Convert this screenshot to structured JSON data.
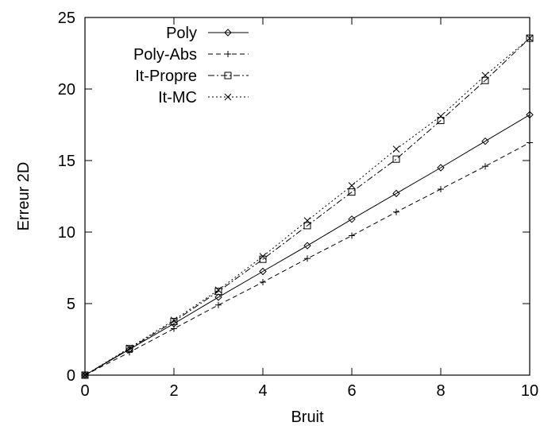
{
  "chart_data": {
    "type": "line",
    "title": "",
    "xlabel": "Bruit",
    "ylabel": "Erreur 2D",
    "xlim": [
      0,
      10
    ],
    "ylim": [
      0,
      25
    ],
    "xticks": [
      "0",
      "2",
      "4",
      "6",
      "8",
      "10"
    ],
    "yticks": [
      "0",
      "5",
      "10",
      "15",
      "20",
      "25"
    ],
    "grid": false,
    "legend_position": "top-left",
    "x": [
      0,
      1,
      2,
      3,
      4,
      5,
      6,
      7,
      8,
      9,
      10
    ],
    "series": [
      {
        "name": "Poly",
        "marker": "diamond",
        "dash": "solid",
        "values": [
          0,
          1.8,
          3.6,
          5.45,
          7.25,
          9.05,
          10.9,
          12.7,
          14.5,
          16.35,
          18.2
        ]
      },
      {
        "name": "Poly-Abs",
        "marker": "plus",
        "dash": "dashed",
        "values": [
          0,
          1.6,
          3.25,
          4.9,
          6.5,
          8.15,
          9.75,
          11.4,
          13.0,
          14.6,
          16.25
        ]
      },
      {
        "name": "It-Propre",
        "marker": "square",
        "dash": "dashdot",
        "values": [
          0,
          1.85,
          3.75,
          5.85,
          8.1,
          10.45,
          12.8,
          15.1,
          17.8,
          20.6,
          23.55
        ]
      },
      {
        "name": "It-MC",
        "marker": "cross",
        "dash": "dotted",
        "values": [
          0,
          1.9,
          3.85,
          5.95,
          8.3,
          10.8,
          13.25,
          15.8,
          18.1,
          20.95,
          23.55
        ]
      }
    ]
  }
}
